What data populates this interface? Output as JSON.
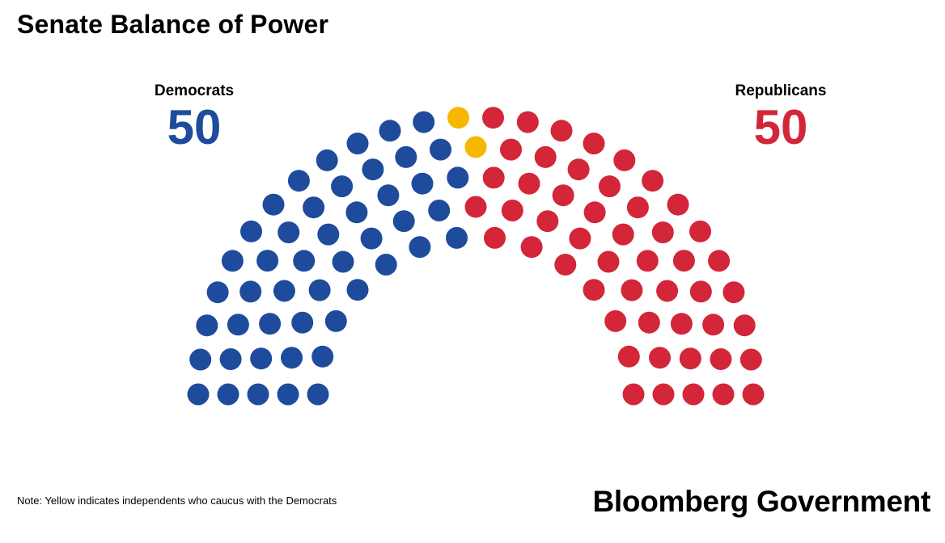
{
  "title": "Senate Balance of Power",
  "parties": {
    "democrats": {
      "label": "Democrats",
      "count": "50",
      "color": "#1f4b9c"
    },
    "republicans": {
      "label": "Republicans",
      "count": "50",
      "color": "#d32638"
    },
    "independents": {
      "color": "#f5b700"
    }
  },
  "note": "Note: Yellow indicates independents who caucus with the Democrats",
  "brand": "Bloomberg Government",
  "chart_data": {
    "type": "parliament",
    "seats": [
      {
        "party": "Democrats",
        "count": 48,
        "color": "#1f4b9c"
      },
      {
        "party": "Independent",
        "count": 2,
        "color": "#f5b700"
      },
      {
        "party": "Republicans",
        "count": 50,
        "color": "#d32638"
      }
    ],
    "total": 100
  }
}
